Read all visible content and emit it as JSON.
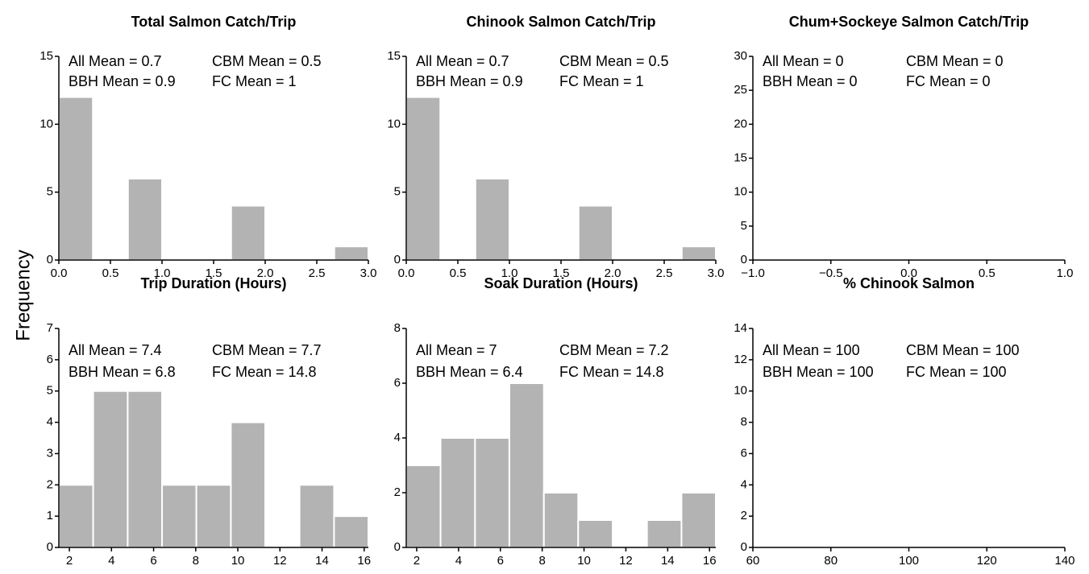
{
  "ylabel": "Frequency",
  "chart_data": [
    {
      "type": "histogram",
      "title": "Total Salmon Catch/Trip",
      "annotations": [
        "All Mean = 0.7",
        "CBM Mean = 0.5",
        "BBH Mean = 0.9",
        "FC Mean = 1"
      ],
      "bins": [
        0,
        0.33,
        0.67,
        1,
        1.33,
        1.67,
        2,
        2.33,
        2.67,
        3
      ],
      "counts": [
        12,
        0,
        6,
        0,
        0,
        4,
        0,
        0,
        1
      ],
      "color": "#b3b3b3",
      "xlim": [
        0,
        3
      ],
      "xticks": [
        {
          "value": 0,
          "label": "0.0"
        },
        0.5,
        {
          "value": 1,
          "label": "1.0"
        },
        1.5,
        {
          "value": 2,
          "label": "2.0"
        },
        2.5,
        {
          "value": 3,
          "label": "3.0"
        }
      ],
      "ylim": [
        0,
        15
      ],
      "yticks": [
        0,
        5,
        10,
        15
      ]
    },
    {
      "type": "histogram",
      "title": "Chinook Salmon Catch/Trip",
      "annotations": [
        "All Mean = 0.7",
        "CBM Mean = 0.5",
        "BBH Mean = 0.9",
        "FC Mean = 1"
      ],
      "bins": [
        0,
        0.33,
        0.67,
        1,
        1.33,
        1.67,
        2,
        2.33,
        2.67,
        3
      ],
      "counts": [
        12,
        0,
        6,
        0,
        0,
        4,
        0,
        0,
        1
      ],
      "color": "#b3b3b3",
      "xlim": [
        0,
        3
      ],
      "xticks": [
        {
          "value": 0,
          "label": "0.0"
        },
        0.5,
        {
          "value": 1,
          "label": "1.0"
        },
        1.5,
        {
          "value": 2,
          "label": "2.0"
        },
        2.5,
        {
          "value": 3,
          "label": "3.0"
        }
      ],
      "ylim": [
        0,
        15
      ],
      "yticks": [
        0,
        5,
        10,
        15
      ]
    },
    {
      "type": "histogram",
      "title": "Chum+Sockeye Salmon Catch/Trip",
      "annotations": [
        "All Mean = 0",
        "CBM Mean = 0",
        "BBH Mean = 0",
        "FC Mean = 0"
      ],
      "color": "#b3b3b3",
      "xlim": [
        -1,
        1
      ],
      "xticks": [
        {
          "value": -1,
          "label": "−1.0"
        },
        {
          "value": -0.5,
          "label": "−0.5"
        },
        {
          "value": 0,
          "label": "0.0"
        },
        0.5,
        {
          "value": 1,
          "label": "1.0"
        }
      ],
      "ylim": [
        0,
        30
      ],
      "yticks": [
        0,
        5,
        10,
        15,
        20,
        25,
        30
      ]
    },
    {
      "type": "histogram",
      "title": "Trip Duration (Hours)",
      "annotations": [
        "All Mean = 7.4",
        "CBM Mean = 7.7",
        "BBH Mean = 6.8",
        "FC Mean = 14.8"
      ],
      "bins": [
        1.5,
        3.13,
        4.77,
        6.4,
        8.03,
        9.67,
        11.3,
        12.93,
        14.57,
        16.2
      ],
      "counts": [
        2,
        5,
        5,
        2,
        2,
        4,
        0,
        2,
        1
      ],
      "color": "#b3b3b3",
      "xlim": [
        1.5,
        16.2
      ],
      "xticks": [
        2,
        4,
        6,
        8,
        10,
        12,
        14,
        16
      ],
      "ylim": [
        0,
        7
      ],
      "yticks": [
        0,
        1,
        2,
        3,
        4,
        5,
        6,
        7
      ]
    },
    {
      "type": "histogram",
      "title": "Soak Duration (Hours)",
      "annotations": [
        "All Mean = 7",
        "CBM Mean = 7.2",
        "BBH Mean = 6.4",
        "FC Mean = 14.8"
      ],
      "bins": [
        1.5,
        3.14,
        4.79,
        6.43,
        8.08,
        9.72,
        11.37,
        13.01,
        14.66,
        16.3
      ],
      "counts": [
        3,
        4,
        4,
        6,
        2,
        1,
        0,
        1,
        2
      ],
      "color": "#b3b3b3",
      "xlim": [
        1.5,
        16.3
      ],
      "xticks": [
        2,
        4,
        6,
        8,
        10,
        12,
        14,
        16
      ],
      "ylim": [
        0,
        8
      ],
      "yticks": [
        0,
        2,
        4,
        6,
        8
      ]
    },
    {
      "type": "histogram",
      "title": "% Chinook Salmon",
      "annotations": [
        "All Mean = 100",
        "CBM Mean = 100",
        "BBH Mean = 100",
        "FC Mean = 100"
      ],
      "color": "#b3b3b3",
      "xlim": [
        60,
        140
      ],
      "xticks": [
        60,
        80,
        100,
        120,
        140
      ],
      "ylim": [
        0,
        14
      ],
      "yticks": [
        0,
        2,
        4,
        6,
        8,
        10,
        12,
        14
      ]
    }
  ]
}
